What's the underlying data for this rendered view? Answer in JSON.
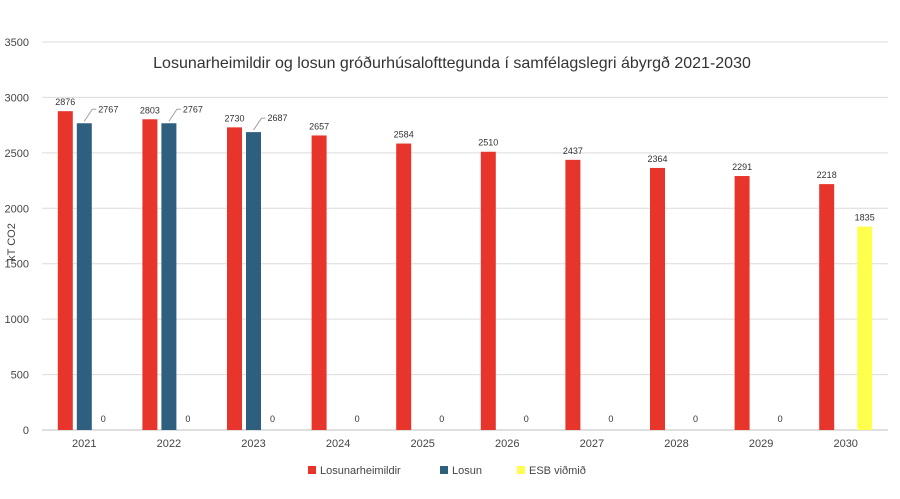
{
  "chart_data": {
    "type": "bar",
    "title": "Losunarheimildir og losun gróðurhúsalofttegunda í samfélagslegri ábyrgð 2021-2030",
    "xlabel": "",
    "ylabel": "kT CO2",
    "ylim": [
      0,
      3500
    ],
    "yticks": [
      0,
      500,
      1000,
      1500,
      2000,
      2500,
      3000,
      3500
    ],
    "grid": true,
    "legend_position": "bottom",
    "categories": [
      "2021",
      "2022",
      "2023",
      "2024",
      "2025",
      "2026",
      "2027",
      "2028",
      "2029",
      "2030"
    ],
    "series": [
      {
        "name": "Losunarheimildir",
        "color": "#E8352B",
        "values": [
          2876,
          2803,
          2730,
          2657,
          2584,
          2510,
          2437,
          2364,
          2291,
          2218
        ],
        "labels": [
          "2876",
          "2803",
          "2730",
          "2657",
          "2584",
          "2510",
          "2437",
          "2364",
          "2291",
          "2218"
        ]
      },
      {
        "name": "Losun",
        "color": "#2E5F7F",
        "values": [
          2767,
          2767,
          2687,
          0,
          0,
          0,
          0,
          0,
          0,
          0
        ],
        "labels": [
          "2767",
          "2767",
          "2687",
          "",
          "",
          "",
          "",
          "",
          "",
          ""
        ]
      },
      {
        "name": "ESB viðmið",
        "color": "#FFFF4D",
        "values": [
          0,
          0,
          0,
          0,
          0,
          0,
          0,
          0,
          0,
          1835
        ],
        "labels": [
          "0",
          "0",
          "0",
          "0",
          "0",
          "0",
          "0",
          "0",
          "0",
          "1835"
        ]
      }
    ]
  }
}
